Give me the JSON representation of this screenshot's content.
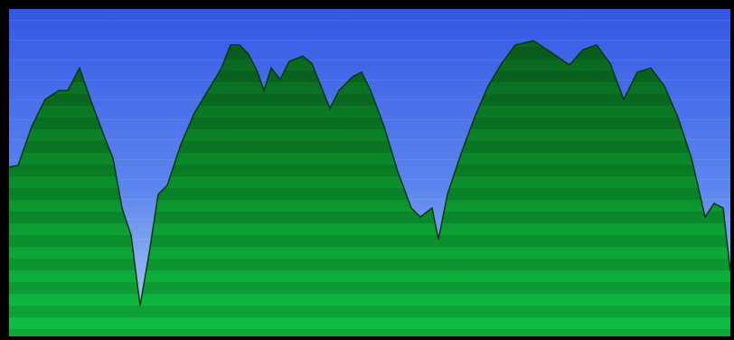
{
  "chart_data": {
    "type": "area",
    "color": "#0e9a30",
    "x": [
      10,
      20,
      35,
      50,
      65,
      75,
      88,
      100,
      115,
      125,
      135,
      145,
      155,
      165,
      175,
      185,
      200,
      215,
      230,
      245,
      255,
      265,
      275,
      285,
      292,
      300,
      310,
      320,
      335,
      345,
      355,
      365,
      375,
      390,
      400,
      410,
      425,
      440,
      455,
      465,
      478,
      485,
      495,
      510,
      525,
      540,
      555,
      570,
      590,
      605,
      620,
      630,
      645,
      660,
      675,
      690,
      705,
      720,
      735,
      750,
      765,
      780,
      790,
      800,
      808
    ],
    "values": [
      51.7,
      52.2,
      64.1,
      72.4,
      75.1,
      75.1,
      82.0,
      72.4,
      61.3,
      54.4,
      39.2,
      30.9,
      9.4,
      25.4,
      43.4,
      46.1,
      58.6,
      68.2,
      75.1,
      82.0,
      89.0,
      89.0,
      86.2,
      80.7,
      75.1,
      82.0,
      78.5,
      84.0,
      85.6,
      83.4,
      76.5,
      69.6,
      75.1,
      79.3,
      80.7,
      75.1,
      64.1,
      50.3,
      39.2,
      36.5,
      39.2,
      29.6,
      43.4,
      55.8,
      66.9,
      76.5,
      83.4,
      89.0,
      90.3,
      87.6,
      84.8,
      82.9,
      87.6,
      89.0,
      83.4,
      72.4,
      80.7,
      82.0,
      76.5,
      66.9,
      54.4,
      36.5,
      40.6,
      39.2,
      19.9
    ],
    "xlim": [
      10,
      808
    ],
    "ylim": [
      0,
      100
    ]
  }
}
